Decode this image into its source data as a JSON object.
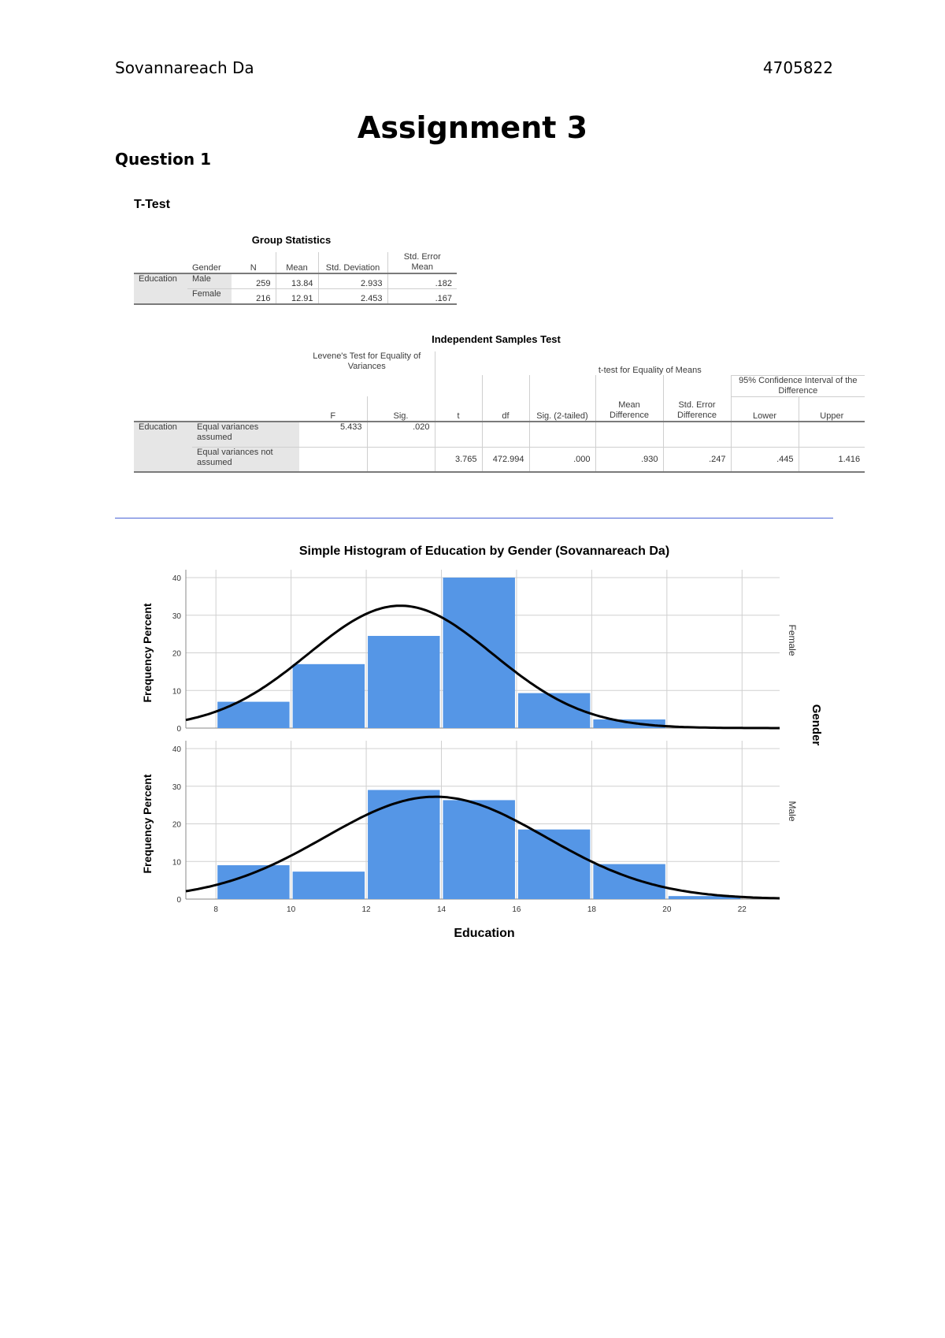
{
  "header": {
    "author": "Sovannareach Da",
    "student_id": "4705822"
  },
  "title": "Assignment 3",
  "question": "Question 1",
  "section": "T-Test",
  "group_statistics": {
    "caption": "Group Statistics",
    "headers": {
      "gender": "Gender",
      "n": "N",
      "mean": "Mean",
      "std_dev": "Std. Deviation",
      "std_err_line1": "Std. Error",
      "std_err_line2": "Mean"
    },
    "variable": "Education",
    "rows": [
      {
        "gender": "Male",
        "n": "259",
        "mean": "13.84",
        "std_dev": "2.933",
        "std_err": ".182"
      },
      {
        "gender": "Female",
        "n": "216",
        "mean": "12.91",
        "std_dev": "2.453",
        "std_err": ".167"
      }
    ]
  },
  "independent_samples": {
    "caption": "Independent Samples Test",
    "levene_header": "Levene's Test for Equality of Variances",
    "ttest_header": "t-test for Equality of Means",
    "ci_header": "95% Confidence Interval of the Difference",
    "headers": {
      "f": "F",
      "sig": "Sig.",
      "t": "t",
      "df": "df",
      "sig2": "Sig. (2-tailed)",
      "mean_diff": "Mean Difference",
      "se_diff": "Std. Error Difference",
      "lower": "Lower",
      "upper": "Upper"
    },
    "variable": "Education",
    "rows": [
      {
        "label": "Equal variances assumed",
        "f": "5.433",
        "sig": ".020",
        "t": "",
        "df": "",
        "sig2": "",
        "mean_diff": "",
        "se_diff": "",
        "lower": "",
        "upper": ""
      },
      {
        "label": "Equal variances not assumed",
        "f": "",
        "sig": "",
        "t": "3.765",
        "df": "472.994",
        "sig2": ".000",
        "mean_diff": ".930",
        "se_diff": ".247",
        "lower": ".445",
        "upper": "1.416"
      }
    ]
  },
  "chart_data": {
    "type": "bar",
    "title": "Simple Histogram of Education by Gender (Sovannareach Da)",
    "xlabel": "Education",
    "ylabel": "Frequency Percent",
    "panel_label": "Gender",
    "xlim": [
      7.2,
      23
    ],
    "ylim": [
      0,
      40
    ],
    "xticks": [
      8,
      10,
      12,
      14,
      16,
      18,
      20,
      22
    ],
    "yticks": [
      0,
      10,
      20,
      30,
      40
    ],
    "bar_color": "#5596e6",
    "curve_color": "#000000",
    "grid": true,
    "panels": [
      {
        "name": "Female",
        "bins": [
          {
            "x0": 8,
            "x1": 10,
            "value": 7
          },
          {
            "x0": 10,
            "x1": 12,
            "value": 17
          },
          {
            "x0": 12,
            "x1": 14,
            "value": 24.5
          },
          {
            "x0": 14,
            "x1": 16,
            "value": 40
          },
          {
            "x0": 16,
            "x1": 18,
            "value": 9.3
          },
          {
            "x0": 18,
            "x1": 20,
            "value": 2.3
          }
        ],
        "normal_curve": {
          "mean": 12.91,
          "sd": 2.453
        }
      },
      {
        "name": "Male",
        "bins": [
          {
            "x0": 8,
            "x1": 10,
            "value": 9
          },
          {
            "x0": 10,
            "x1": 12,
            "value": 7.3
          },
          {
            "x0": 12,
            "x1": 14,
            "value": 29
          },
          {
            "x0": 14,
            "x1": 16,
            "value": 26.3
          },
          {
            "x0": 16,
            "x1": 18,
            "value": 18.5
          },
          {
            "x0": 18,
            "x1": 20,
            "value": 9.3
          },
          {
            "x0": 20,
            "x1": 22,
            "value": 0.8
          }
        ],
        "normal_curve": {
          "mean": 13.84,
          "sd": 2.933
        }
      }
    ]
  }
}
